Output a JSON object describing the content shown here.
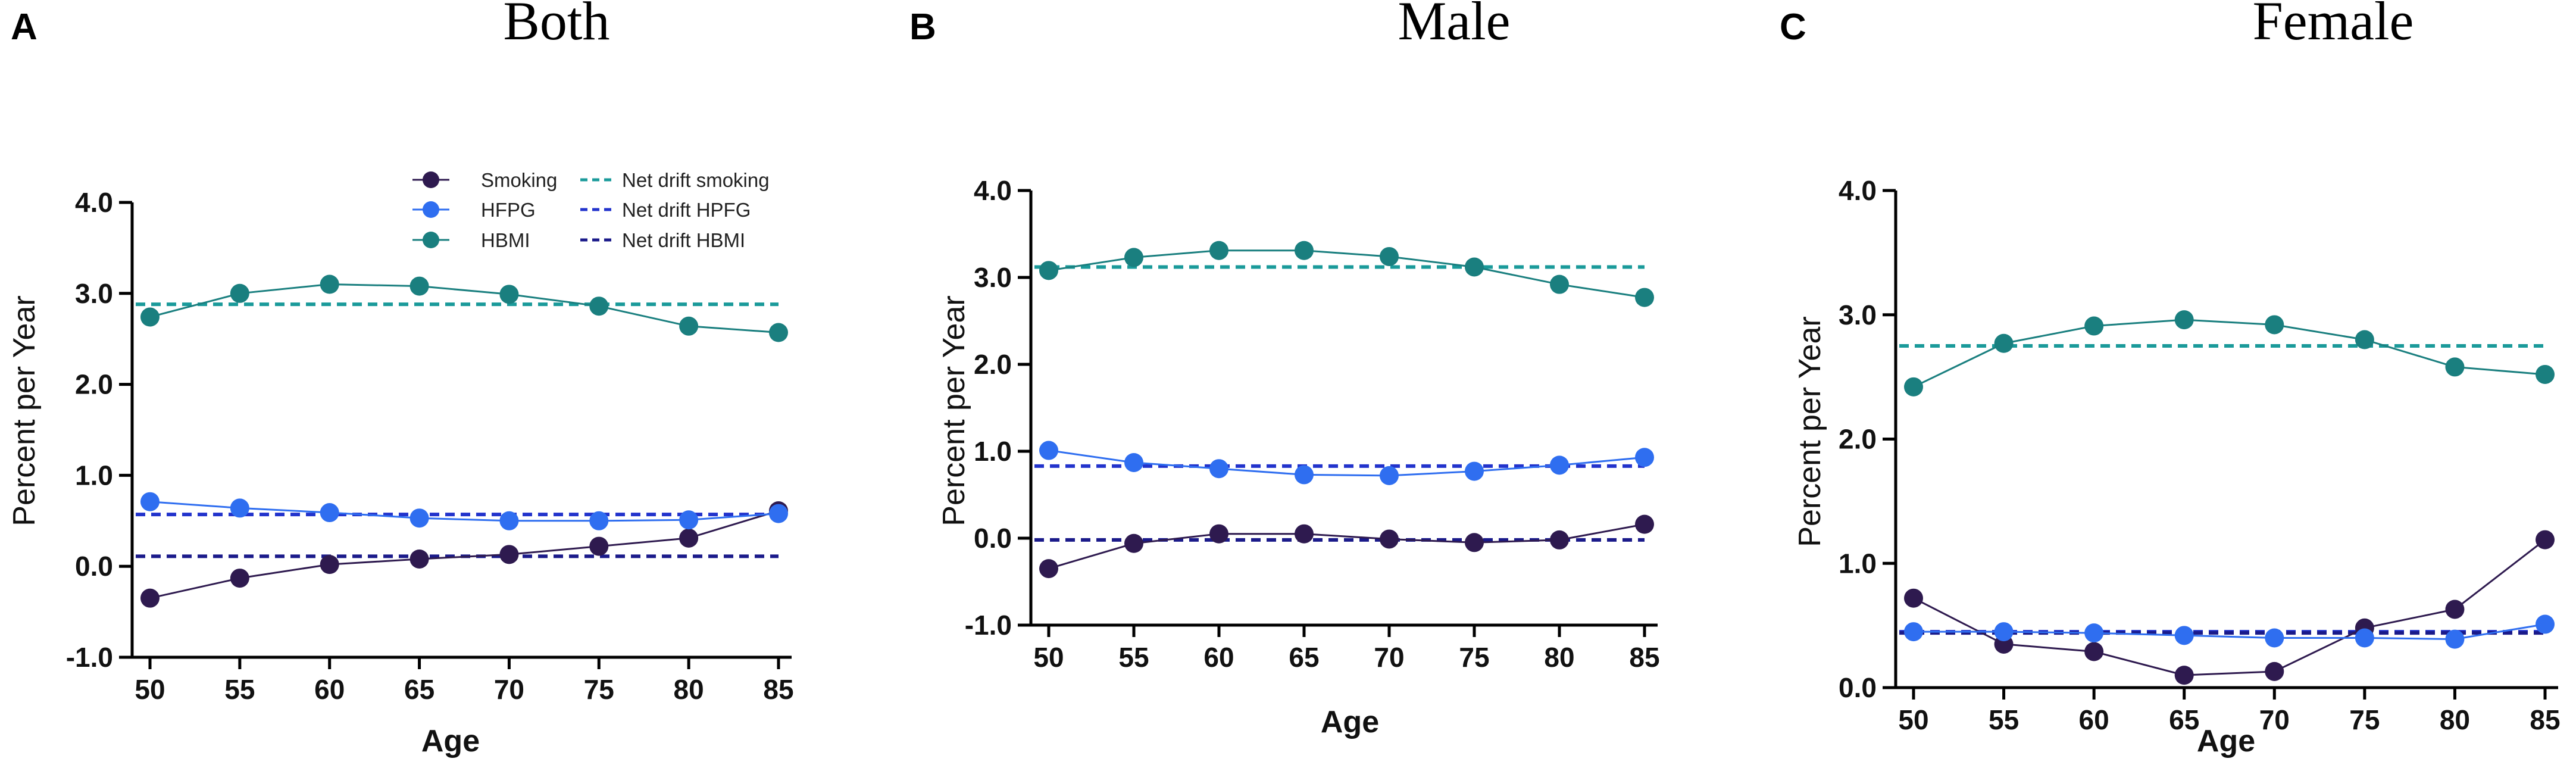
{
  "chart_data": [
    {
      "type": "line",
      "panel": "A",
      "title": "Both",
      "xlabel": "Age",
      "ylabel": "Percent per Year",
      "x": [
        50,
        55,
        60,
        65,
        70,
        75,
        80,
        85
      ],
      "ylim": [
        -1.0,
        4.0
      ],
      "yticks": [
        -1.0,
        0.0,
        1.0,
        2.0,
        3.0,
        4.0
      ],
      "ytick_labels": [
        "-1.0",
        "0.0",
        "1.0",
        "2.0",
        "3.0",
        "4.0"
      ],
      "series": [
        {
          "name": "Smoking",
          "color": "#2e1a4f",
          "values": [
            -0.35,
            -0.13,
            0.02,
            0.08,
            0.13,
            0.22,
            0.31,
            0.61
          ]
        },
        {
          "name": "HFPG",
          "color": "#2f6ef0",
          "values": [
            0.71,
            0.64,
            0.59,
            0.53,
            0.5,
            0.5,
            0.51,
            0.58
          ]
        },
        {
          "name": "HBMI",
          "color": "#1a7f7f",
          "values": [
            2.74,
            3.0,
            3.1,
            3.08,
            2.99,
            2.86,
            2.64,
            2.57
          ]
        }
      ],
      "net_drift": [
        {
          "name": "Net drift smoking",
          "color": "#1a9a9a",
          "value": 2.88
        },
        {
          "name": "Net drift HPFG",
          "color": "#2233cc",
          "value": 0.57
        },
        {
          "name": "Net drift HBMI",
          "color": "#1a1a8a",
          "value": 0.11
        }
      ],
      "legend": {
        "placement": "top-right",
        "entries": [
          "Smoking",
          "HFPG",
          "HBMI",
          "Net drift smoking",
          "Net drift HPFG",
          "Net drift HBMI"
        ]
      }
    },
    {
      "type": "line",
      "panel": "B",
      "title": "Male",
      "xlabel": "Age",
      "ylabel": "Percent per Year",
      "x": [
        50,
        55,
        60,
        65,
        70,
        75,
        80,
        85
      ],
      "ylim": [
        -1.0,
        4.0
      ],
      "yticks": [
        -1.0,
        0.0,
        1.0,
        2.0,
        3.0,
        4.0
      ],
      "ytick_labels": [
        "-1.0",
        "0.0",
        "1.0",
        "2.0",
        "3.0",
        "4.0"
      ],
      "series": [
        {
          "name": "Smoking",
          "color": "#2e1a4f",
          "values": [
            -0.35,
            -0.06,
            0.05,
            0.05,
            -0.01,
            -0.05,
            -0.02,
            0.16
          ]
        },
        {
          "name": "HFPG",
          "color": "#2f6ef0",
          "values": [
            1.01,
            0.87,
            0.8,
            0.73,
            0.72,
            0.77,
            0.84,
            0.93
          ]
        },
        {
          "name": "HBMI",
          "color": "#1a7f7f",
          "values": [
            3.08,
            3.23,
            3.31,
            3.31,
            3.24,
            3.12,
            2.92,
            2.77
          ]
        }
      ],
      "net_drift": [
        {
          "name": "Net drift smoking",
          "color": "#1a9a9a",
          "value": 3.12
        },
        {
          "name": "Net drift HPFG",
          "color": "#2233cc",
          "value": 0.83
        },
        {
          "name": "Net drift HBMI",
          "color": "#1a1a8a",
          "value": -0.02
        }
      ]
    },
    {
      "type": "line",
      "panel": "C",
      "title": "Female",
      "xlabel": "Age",
      "ylabel": "Percent per Year",
      "x": [
        50,
        55,
        60,
        65,
        70,
        75,
        80,
        85
      ],
      "ylim": [
        0.0,
        4.0
      ],
      "yticks": [
        0.0,
        1.0,
        2.0,
        3.0,
        4.0
      ],
      "ytick_labels": [
        "0.0",
        "1.0",
        "2.0",
        "3.0",
        "4.0"
      ],
      "series": [
        {
          "name": "Smoking",
          "color": "#2e1a4f",
          "values": [
            0.72,
            0.35,
            0.29,
            0.1,
            0.13,
            0.48,
            0.63,
            1.19
          ]
        },
        {
          "name": "HFPG",
          "color": "#2f6ef0",
          "values": [
            0.45,
            0.45,
            0.44,
            0.42,
            0.4,
            0.4,
            0.39,
            0.51
          ]
        },
        {
          "name": "HBMI",
          "color": "#1a7f7f",
          "values": [
            2.42,
            2.77,
            2.91,
            2.96,
            2.92,
            2.8,
            2.58,
            2.52
          ]
        }
      ],
      "net_drift": [
        {
          "name": "Net drift smoking",
          "color": "#1a9a9a",
          "value": 2.75
        },
        {
          "name": "Net drift HPFG",
          "color": "#2233cc",
          "value": 0.45
        },
        {
          "name": "Net drift HBMI",
          "color": "#1a1a8a",
          "value": 0.44
        }
      ]
    }
  ]
}
